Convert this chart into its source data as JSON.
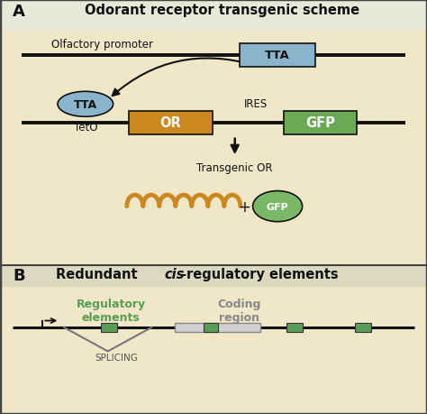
{
  "bg_color_A": "#f0e6c8",
  "bg_color_B": "#e8ddb8",
  "bg_title_A": "#e8e8e8",
  "bg_title_B": "#e0d8b8",
  "border_color": "#444444",
  "title_A": "Odorant receptor transgenic scheme",
  "title_B_pre": "Redundant ",
  "title_B_italic": "cis",
  "title_B_post": "-regulatory elements",
  "panel_A_label": "A",
  "panel_B_label": "B",
  "TTA_box_color": "#8ab4cc",
  "OR_box_color": "#cc8820",
  "GFP_box_color": "#6aaa55",
  "GFP_circle_color": "#7ab868",
  "line_color": "#111111",
  "text_color": "#111111",
  "green_reg_color": "#5a9e55",
  "gray_coding_color": "#d0d0d0",
  "coil_color": "#cc8820",
  "olfactory_text": "Olfactory promoter",
  "TTA_text": "TTA",
  "TetO_text": "TetO",
  "OR_text": "OR",
  "IRES_text": "IRES",
  "GFP_text": "GFP",
  "transgenic_text": "Transgenic OR",
  "reg_elements_text": "Regulatory\nelements",
  "coding_region_text": "Coding\nregion",
  "splicing_text": "SPLICING",
  "plus_text": "+",
  "figsize": [
    4.74,
    4.6
  ],
  "dpi": 100
}
